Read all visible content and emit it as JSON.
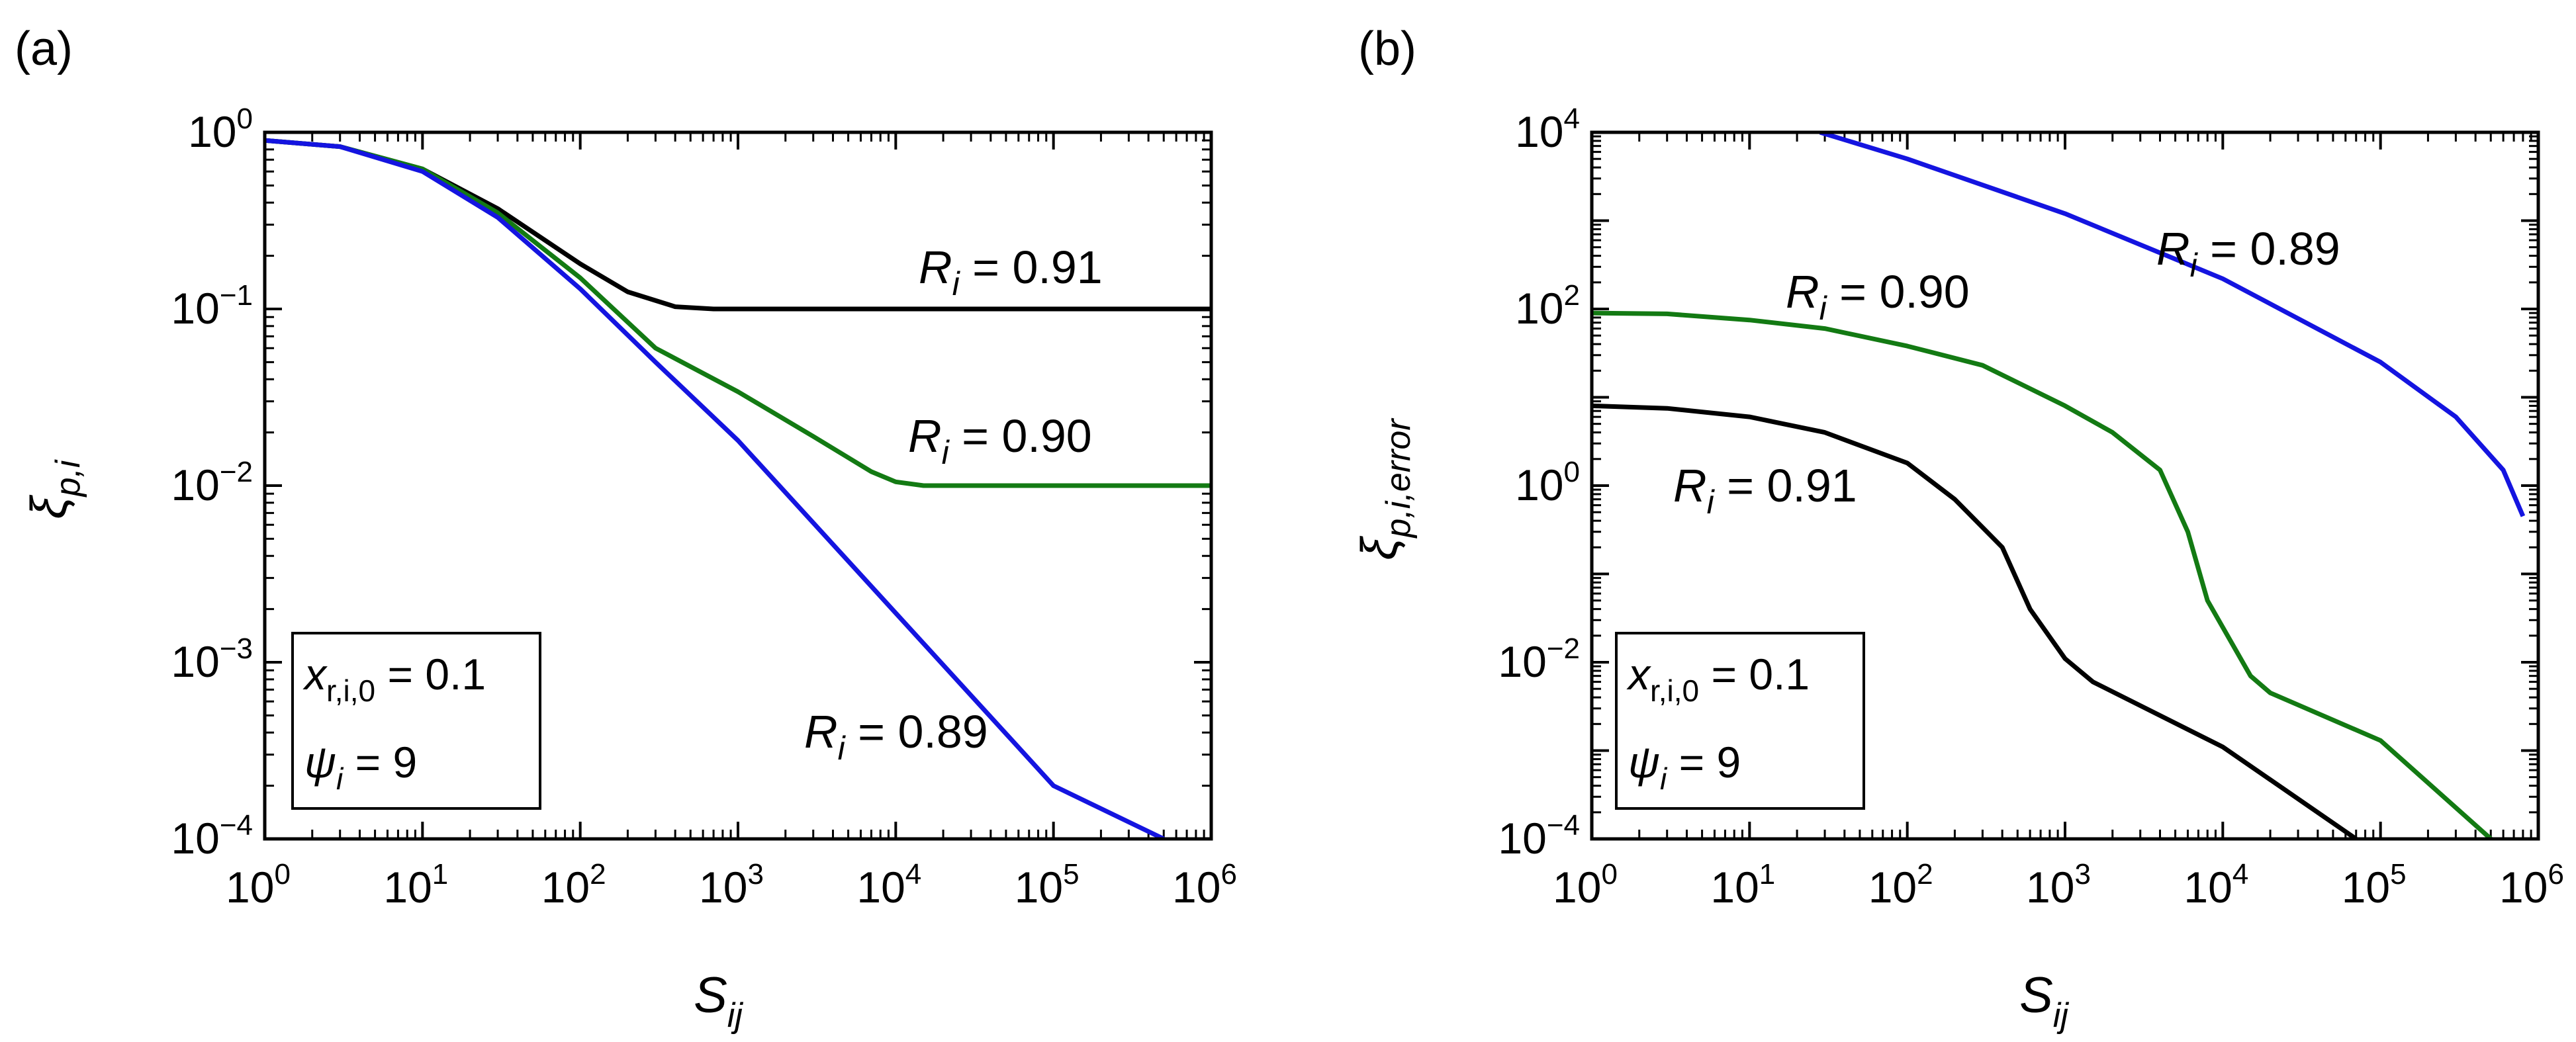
{
  "chart_data": [
    {
      "panel": "(a)",
      "type": "line",
      "xscale": "log",
      "yscale": "log",
      "xlabel": "S",
      "xlabel_sub": "ij",
      "ylabel": "ξ",
      "ylabel_sub": "p,i",
      "xlim": [
        1,
        1000000
      ],
      "ylim": [
        0.0001,
        1
      ],
      "xtick_exponents": [
        "0",
        "1",
        "2",
        "3",
        "4",
        "5",
        "6"
      ],
      "ytick_exponents": [
        "−4",
        "−3",
        "−2",
        "−1",
        "0"
      ],
      "tick_base": "10",
      "series": [
        {
          "name": "R_i = 0.91",
          "color": "#000000",
          "x": [
            1,
            3,
            10,
            30,
            100,
            200,
            400,
            700,
            1000,
            10000,
            1000000
          ],
          "y": [
            0.9,
            0.83,
            0.62,
            0.37,
            0.18,
            0.125,
            0.103,
            0.1,
            0.1,
            0.1,
            0.1
          ]
        },
        {
          "name": "R_i = 0.90",
          "color": "#137a13",
          "x": [
            1,
            3,
            10,
            30,
            100,
            300,
            1000,
            3000,
            7000,
            10000,
            15000,
            100000,
            1000000
          ],
          "y": [
            0.9,
            0.83,
            0.62,
            0.35,
            0.15,
            0.06,
            0.034,
            0.019,
            0.012,
            0.0105,
            0.01,
            0.01,
            0.01
          ]
        },
        {
          "name": "R_i = 0.89",
          "color": "#1414e0",
          "x": [
            1,
            3,
            10,
            30,
            100,
            300,
            1000,
            10000,
            100000,
            500000
          ],
          "y": [
            0.9,
            0.83,
            0.6,
            0.33,
            0.13,
            0.05,
            0.018,
            0.0019,
            0.0002,
            0.0001
          ]
        }
      ],
      "labels": [
        {
          "series": "R_i = 0.91",
          "value": "0.91"
        },
        {
          "series": "R_i = 0.90",
          "value": "0.90"
        },
        {
          "series": "R_i = 0.89",
          "value": "0.89"
        }
      ],
      "inset": {
        "line1_var": "x",
        "line1_sub": "r,i,0",
        "line1_value": "0.1",
        "line2_var": "ψ",
        "line2_sub": "i",
        "line2_value": "9"
      }
    },
    {
      "panel": "(b)",
      "type": "line",
      "xscale": "log",
      "yscale": "log",
      "xlabel": "S",
      "xlabel_sub": "ij",
      "ylabel": "ξ",
      "ylabel_sub": "p,i,error",
      "xlim": [
        1,
        1000000
      ],
      "ylim": [
        0.0001,
        10000
      ],
      "xtick_exponents": [
        "0",
        "1",
        "2",
        "3",
        "4",
        "5",
        "6"
      ],
      "ytick_exponents": [
        "−4",
        "−2",
        "0",
        "2",
        "4"
      ],
      "tick_base": "10",
      "series": [
        {
          "name": "R_i = 0.89",
          "color": "#1414e0",
          "x": [
            28,
            100,
            1000,
            10000,
            100000,
            300000,
            600000,
            800000
          ],
          "y": [
            10000,
            5000,
            1200,
            220,
            25,
            6,
            1.5,
            0.45
          ]
        },
        {
          "name": "R_i = 0.90",
          "color": "#137a13",
          "x": [
            1,
            3,
            10,
            30,
            100,
            300,
            1000,
            2000,
            4000,
            6000,
            8000,
            15000,
            20000,
            100000,
            500000
          ],
          "y": [
            90,
            88,
            75,
            60,
            38,
            23,
            8,
            4,
            1.5,
            0.3,
            0.05,
            0.007,
            0.0045,
            0.0013,
            0.0001
          ]
        },
        {
          "name": "R_i = 0.91",
          "color": "#000000",
          "x": [
            1,
            3,
            10,
            30,
            100,
            200,
            400,
            600,
            1000,
            1500,
            10000,
            70000
          ],
          "y": [
            8,
            7.5,
            6,
            4,
            1.8,
            0.7,
            0.2,
            0.04,
            0.011,
            0.006,
            0.0011,
            0.0001
          ]
        }
      ],
      "labels": [
        {
          "series": "R_i = 0.89",
          "value": "0.89"
        },
        {
          "series": "R_i = 0.90",
          "value": "0.90"
        },
        {
          "series": "R_i = 0.91",
          "value": "0.91"
        }
      ],
      "inset": {
        "line1_var": "x",
        "line1_sub": "r,i,0",
        "line1_value": "0.1",
        "line2_var": "ψ",
        "line2_sub": "i",
        "line2_value": "9"
      }
    }
  ]
}
